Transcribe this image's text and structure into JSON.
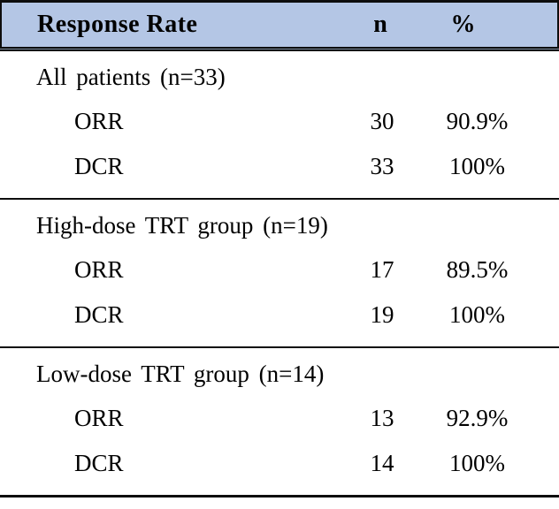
{
  "chart_data": {
    "type": "table",
    "header": {
      "label": "Response Rate",
      "n": "n",
      "pct": "%"
    },
    "sections": [
      {
        "title": "All patients (n=33)",
        "rows": [
          {
            "label": "ORR",
            "n": "30",
            "pct": "90.9%"
          },
          {
            "label": "DCR",
            "n": "33",
            "pct": "100%"
          }
        ]
      },
      {
        "title": "High-dose TRT group (n=19)",
        "rows": [
          {
            "label": "ORR",
            "n": "17",
            "pct": "89.5%"
          },
          {
            "label": "DCR",
            "n": "19",
            "pct": "100%"
          }
        ]
      },
      {
        "title": "Low-dose TRT group (n=14)",
        "rows": [
          {
            "label": "ORR",
            "n": "13",
            "pct": "92.9%"
          },
          {
            "label": "DCR",
            "n": "14",
            "pct": "100%"
          }
        ]
      }
    ]
  },
  "style": {
    "header_bg": "#b4c6e5",
    "border_color": "#0d0d0d",
    "text_color": "#000000"
  }
}
